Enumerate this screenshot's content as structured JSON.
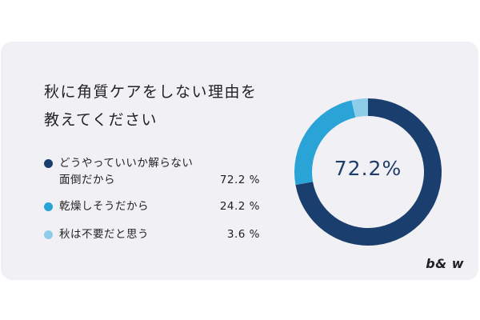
{
  "title_line1": "秋に角質ケアをしない理由を",
  "title_line2": "教えてください",
  "center_value": "72.2%",
  "brand": "b& w",
  "legend": [
    {
      "line1": "どうやっていいか解らない",
      "line2": "面倒だから",
      "pct": "72.2 %",
      "color": "#1a3f6e"
    },
    {
      "line1": "乾燥しそうだから",
      "line2": "",
      "pct": "24.2 %",
      "color": "#2aa3d6"
    },
    {
      "line1": "秋は不要だと思う",
      "line2": "",
      "pct": "3.6 %",
      "color": "#8ecdea"
    }
  ],
  "chart_data": {
    "type": "pie",
    "variant": "donut",
    "categories": [
      "どうやっていいか解らない 面倒だから",
      "乾燥しそうだから",
      "秋は不要だと思う"
    ],
    "values": [
      72.2,
      24.2,
      3.6
    ],
    "colors": [
      "#1a3f6e",
      "#2aa3d6",
      "#8ecdea"
    ],
    "title": "秋に角質ケアをしない理由を 教えてください",
    "center_label": "72.2%",
    "legend": "left"
  }
}
